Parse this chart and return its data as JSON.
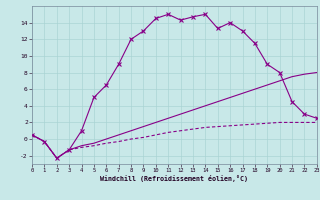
{
  "background_color": "#c8e8e8",
  "grid_color": "#aad4d4",
  "line_color": "#880088",
  "hours": [
    0,
    1,
    2,
    3,
    4,
    5,
    6,
    7,
    8,
    9,
    10,
    11,
    12,
    13,
    14,
    15,
    16,
    17,
    18,
    19,
    20,
    21,
    22,
    23
  ],
  "temp": [
    0.5,
    -0.3,
    -2.3,
    -1.3,
    1.0,
    5.0,
    6.5,
    9.0,
    12.0,
    13.0,
    14.5,
    15.0,
    14.3,
    14.7,
    15.0,
    13.3,
    14.0,
    13.0,
    11.5,
    9.0,
    8.0,
    4.5,
    3.0,
    2.5
  ],
  "line2": [
    0.5,
    -0.3,
    -2.3,
    -1.3,
    -0.8,
    -0.5,
    0.0,
    0.5,
    1.0,
    1.5,
    2.0,
    2.5,
    3.0,
    3.5,
    4.0,
    4.5,
    5.0,
    5.5,
    6.0,
    6.5,
    7.0,
    7.5,
    7.8,
    8.0
  ],
  "line3": [
    0.5,
    -0.3,
    -2.3,
    -1.3,
    -1.0,
    -0.8,
    -0.5,
    -0.3,
    0.0,
    0.2,
    0.5,
    0.8,
    1.0,
    1.2,
    1.4,
    1.5,
    1.6,
    1.7,
    1.8,
    1.9,
    2.0,
    2.0,
    2.0,
    2.0
  ],
  "xlabel": "Windchill (Refroidissement éolien,°C)",
  "ylim": [
    -3,
    16
  ],
  "xlim": [
    0,
    23
  ]
}
